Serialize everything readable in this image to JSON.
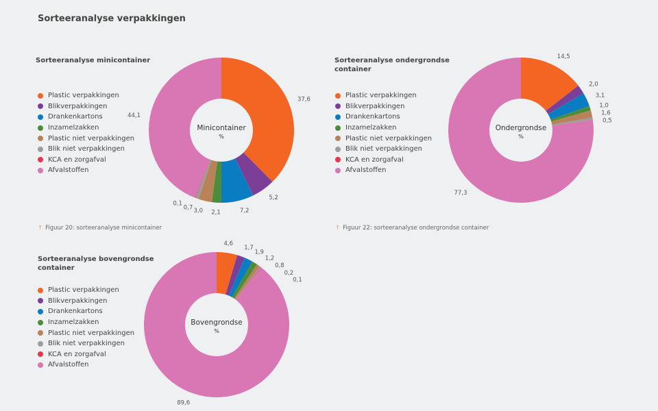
{
  "title": "Sorteeranalyse verpakkingen",
  "colors": [
    "#f26522",
    "#7b3f98",
    "#0a7dc2",
    "#4d8c3a",
    "#b9835a",
    "#9d9d9d",
    "#e8374a",
    "#d977b4"
  ],
  "chart_data": [
    {
      "type": "pie",
      "title": "Sorteeranalyse minicontainer",
      "center_label": "Minicontainer",
      "unit": "%",
      "caption": "Figuur 20: sorteeranalyse minicontainer",
      "categories": [
        "Plastic verpakkingen",
        "Blikverpakkingen",
        "Drankenkartons",
        "Inzamelzakken",
        "Plastic niet verpakkingen",
        "Blik niet verpakkingen",
        "KCA en zorgafval",
        "Afvalstoffen"
      ],
      "values": [
        37.6,
        5.2,
        7.2,
        2.1,
        3.0,
        0.7,
        0.1,
        44.1
      ],
      "labels": [
        "37,6",
        "5,2",
        "7,2",
        "2,1",
        "3,0",
        "0,7",
        "0,1",
        "44,1"
      ]
    },
    {
      "type": "pie",
      "title": "Sorteeranalyse ondergrondse container",
      "center_label": "Ondergrondse",
      "unit": "%",
      "caption": "Figuur 22: sorteeranalyse ondergrondse container",
      "categories": [
        "Plastic verpakkingen",
        "Blikverpakkingen",
        "Drankenkartons",
        "Inzamelzakken",
        "Plastic niet verpakkingen",
        "Blik niet verpakkingen",
        "KCA en zorgafval",
        "Afvalstoffen"
      ],
      "values": [
        14.5,
        2.0,
        3.1,
        1.0,
        1.6,
        0.5,
        0,
        77.3
      ],
      "labels": [
        "14,5",
        "2,0",
        "3,1",
        "1,0",
        "1,6",
        "0,5",
        "",
        "77,3"
      ]
    },
    {
      "type": "pie",
      "title": "Sorteeranalyse bovengrondse container",
      "center_label": "Bovengrondse",
      "unit": "%",
      "categories": [
        "Plastic verpakkingen",
        "Blikverpakkingen",
        "Drankenkartons",
        "Inzamelzakken",
        "Plastic niet verpakkingen",
        "Blik niet verpakkingen",
        "KCA en zorgafval",
        "Afvalstoffen"
      ],
      "values": [
        4.6,
        1.7,
        1.9,
        1.2,
        0.8,
        0.2,
        0.1,
        89.6
      ],
      "labels": [
        "4,6",
        "1,7",
        "1,9",
        "1,2",
        "0,8",
        "0,2",
        "0,1",
        "89,6"
      ]
    }
  ]
}
